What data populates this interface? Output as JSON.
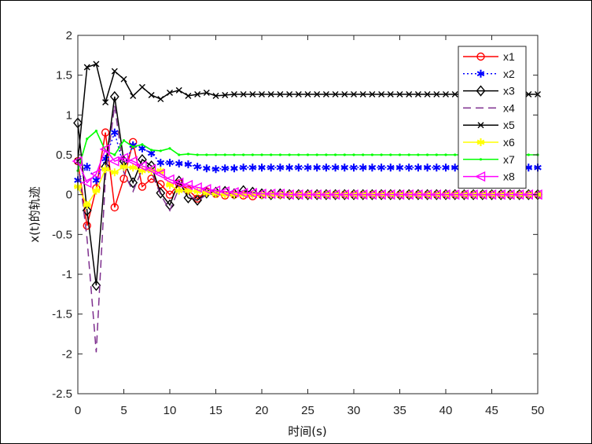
{
  "chart_data": {
    "type": "line",
    "title": "",
    "xlabel": "时间(s)",
    "ylabel": "x(t)的轨迹",
    "xlim": [
      0,
      50
    ],
    "ylim": [
      -2.5,
      2
    ],
    "xticks": [
      0,
      5,
      10,
      15,
      20,
      25,
      30,
      35,
      40,
      45,
      50
    ],
    "yticks": [
      -2.5,
      -2,
      -1.5,
      -1,
      -0.5,
      0,
      0.5,
      1,
      1.5,
      2
    ],
    "grid": false,
    "legend_position": "top-right",
    "x": [
      0,
      1,
      2,
      3,
      4,
      5,
      6,
      7,
      8,
      9,
      10,
      11,
      12,
      13,
      14,
      15,
      16,
      17,
      18,
      19,
      20,
      21,
      22,
      23,
      24,
      25,
      26,
      27,
      28,
      29,
      30,
      31,
      32,
      33,
      34,
      35,
      36,
      37,
      38,
      39,
      40,
      41,
      42,
      43,
      44,
      45,
      46,
      47,
      48,
      49,
      50
    ],
    "series": [
      {
        "name": "x1",
        "color": "#ff0000",
        "dash": "",
        "marker": "circle",
        "values": [
          0.42,
          -0.39,
          0.08,
          0.78,
          -0.16,
          0.2,
          0.66,
          0.1,
          0.2,
          0.13,
          0.0,
          0.14,
          0.06,
          -0.05,
          0.04,
          0.01,
          -0.01,
          0.0,
          -0.01,
          -0.02,
          0.0,
          0.0,
          0.0,
          0.0,
          0.0,
          0.0,
          0.0,
          0.0,
          0.0,
          0.0,
          0.0,
          0.0,
          0.0,
          0.0,
          0.0,
          0.0,
          0.0,
          0.0,
          0.0,
          0.0,
          0.0,
          0.0,
          0.0,
          0.0,
          0.0,
          0.0,
          0.0,
          0.0,
          0.0,
          0.0,
          0.0
        ]
      },
      {
        "name": "x2",
        "color": "#0000ff",
        "dash": "2 3",
        "marker": "asterisk",
        "values": [
          0.18,
          0.35,
          0.18,
          0.45,
          0.78,
          0.35,
          0.62,
          0.58,
          0.52,
          0.4,
          0.4,
          0.39,
          0.38,
          0.35,
          0.33,
          0.32,
          0.33,
          0.33,
          0.34,
          0.34,
          0.34,
          0.34,
          0.34,
          0.34,
          0.34,
          0.34,
          0.34,
          0.34,
          0.34,
          0.34,
          0.34,
          0.34,
          0.34,
          0.34,
          0.34,
          0.34,
          0.34,
          0.34,
          0.34,
          0.34,
          0.34,
          0.34,
          0.34,
          0.34,
          0.34,
          0.34,
          0.34,
          0.34,
          0.34,
          0.34,
          0.34
        ]
      },
      {
        "name": "x3",
        "color": "#000000",
        "dash": "",
        "marker": "diamond",
        "values": [
          0.9,
          -0.2,
          -1.14,
          0.35,
          1.23,
          0.42,
          0.15,
          0.44,
          0.36,
          0.02,
          -0.13,
          0.17,
          -0.04,
          -0.07,
          0.02,
          0.03,
          0.04,
          0.01,
          0.05,
          0.03,
          0.01,
          0.0,
          0.01,
          0.0,
          0.0,
          0.0,
          0.0,
          0.0,
          0.0,
          0.0,
          0.0,
          0.0,
          0.0,
          0.0,
          0.0,
          0.0,
          0.0,
          0.0,
          0.0,
          0.0,
          0.0,
          0.0,
          0.0,
          0.0,
          0.0,
          0.0,
          0.0,
          0.0,
          0.0,
          0.0,
          0.0
        ]
      },
      {
        "name": "x4",
        "color": "#7e2f8e",
        "dash": "10 6",
        "marker": "none",
        "values": [
          0.42,
          -0.55,
          -1.98,
          0.22,
          1.12,
          0.28,
          0.04,
          0.32,
          0.28,
          0.0,
          -0.2,
          0.08,
          0.0,
          -0.08,
          0.0,
          0.01,
          0.0,
          0.0,
          0.0,
          0.0,
          0.0,
          0.0,
          0.0,
          0.0,
          0.0,
          0.0,
          0.0,
          0.0,
          0.0,
          0.0,
          0.0,
          0.0,
          0.0,
          0.0,
          0.0,
          0.0,
          0.0,
          0.0,
          0.0,
          0.0,
          0.0,
          0.0,
          0.0,
          0.0,
          0.0,
          0.0,
          0.0,
          0.0,
          0.0,
          0.0,
          0.0
        ]
      },
      {
        "name": "x5",
        "color": "#000000",
        "dash": "",
        "marker": "cross",
        "values": [
          0.42,
          1.6,
          1.64,
          1.16,
          1.55,
          1.45,
          1.24,
          1.35,
          1.25,
          1.2,
          1.28,
          1.31,
          1.24,
          1.26,
          1.28,
          1.24,
          1.25,
          1.26,
          1.26,
          1.26,
          1.26,
          1.26,
          1.26,
          1.26,
          1.26,
          1.26,
          1.26,
          1.26,
          1.26,
          1.26,
          1.26,
          1.26,
          1.26,
          1.26,
          1.26,
          1.26,
          1.26,
          1.26,
          1.26,
          1.26,
          1.26,
          1.26,
          1.26,
          1.26,
          1.26,
          1.26,
          1.26,
          1.26,
          1.26,
          1.26,
          1.26
        ]
      },
      {
        "name": "x6",
        "color": "#ffff00",
        "dash": "",
        "marker": "star",
        "values": [
          0.1,
          -0.13,
          0.05,
          0.32,
          0.28,
          0.35,
          0.34,
          0.3,
          0.3,
          0.3,
          0.12,
          0.05,
          0.05,
          0.04,
          0.02,
          0.01,
          0.0,
          0.0,
          0.0,
          0.0,
          0.0,
          0.0,
          0.0,
          0.0,
          0.0,
          0.0,
          0.0,
          0.0,
          0.0,
          0.0,
          0.0,
          0.0,
          0.0,
          0.0,
          0.0,
          0.0,
          0.0,
          0.0,
          0.0,
          0.0,
          0.0,
          0.0,
          0.0,
          0.0,
          0.0,
          0.0,
          0.0,
          0.0,
          0.0,
          0.0,
          0.0
        ]
      },
      {
        "name": "x7",
        "color": "#00ff00",
        "dash": "",
        "marker": "dot",
        "values": [
          0.3,
          0.7,
          0.8,
          0.55,
          0.5,
          0.68,
          0.6,
          0.63,
          0.56,
          0.55,
          0.58,
          0.5,
          0.51,
          0.5,
          0.5,
          0.5,
          0.5,
          0.5,
          0.5,
          0.5,
          0.5,
          0.5,
          0.5,
          0.5,
          0.5,
          0.5,
          0.5,
          0.5,
          0.5,
          0.5,
          0.5,
          0.5,
          0.5,
          0.5,
          0.5,
          0.5,
          0.5,
          0.5,
          0.5,
          0.5,
          0.5,
          0.5,
          0.5,
          0.5,
          0.5,
          0.5,
          0.5,
          0.5,
          0.5,
          0.5,
          0.5
        ]
      },
      {
        "name": "x8",
        "color": "#ff00ff",
        "dash": "",
        "marker": "triangle-left",
        "values": [
          0.42,
          0.15,
          0.26,
          0.57,
          0.42,
          0.46,
          0.42,
          0.36,
          0.32,
          0.26,
          0.19,
          0.15,
          0.12,
          0.09,
          0.07,
          0.05,
          0.04,
          0.03,
          0.02,
          0.02,
          0.01,
          0.01,
          0.01,
          0.0,
          0.0,
          0.0,
          0.0,
          0.0,
          0.0,
          0.0,
          0.0,
          0.0,
          0.0,
          0.0,
          0.0,
          0.0,
          0.0,
          0.0,
          0.0,
          0.0,
          0.0,
          0.0,
          0.0,
          0.0,
          0.0,
          0.0,
          0.0,
          0.0,
          0.0,
          0.0,
          0.0
        ]
      }
    ]
  }
}
